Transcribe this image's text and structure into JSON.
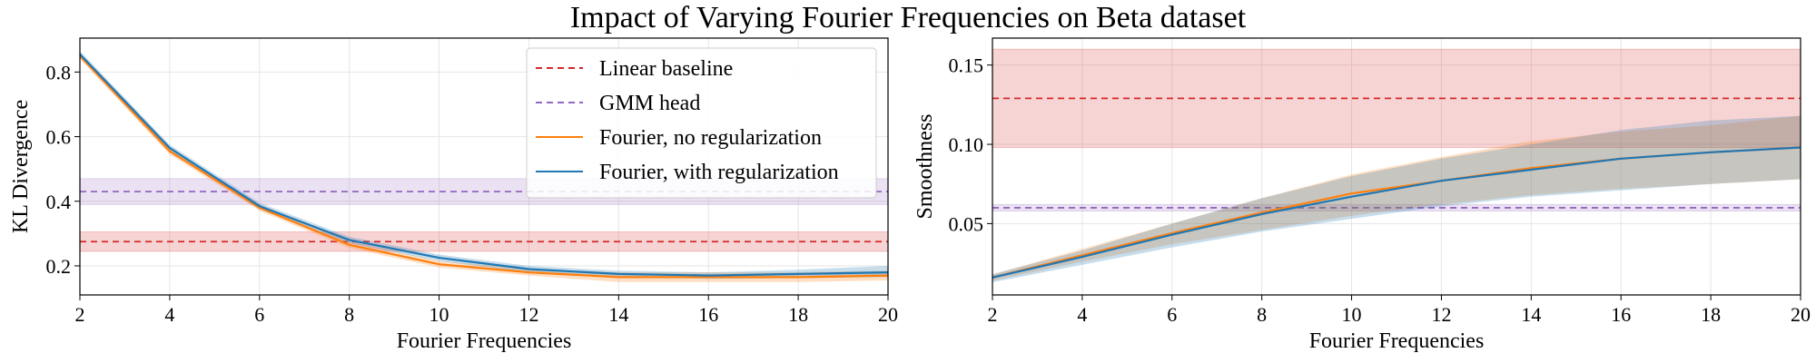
{
  "figure": {
    "suptitle": "Impact of Varying Fourier Frequencies on Beta dataset"
  },
  "colors": {
    "linear": "#d62728",
    "gmm": "#9467bd",
    "fourier_noreg": "#ff7f0e",
    "fourier_reg": "#1f77b4"
  },
  "chart_data": [
    {
      "type": "line",
      "xlabel": "Fourier Frequencies",
      "ylabel": "KL Divergence",
      "xlim": [
        2,
        20
      ],
      "ylim": [
        0.11,
        0.905
      ],
      "xticks": [
        2,
        4,
        6,
        8,
        10,
        12,
        14,
        16,
        18,
        20
      ],
      "yticks": [
        0.2,
        0.4,
        0.6,
        0.8
      ],
      "ytick_labels": [
        "0.2",
        "0.4",
        "0.6",
        "0.8"
      ],
      "grid": true,
      "legend": {
        "position": "upper-right",
        "entries": [
          "Linear baseline",
          "GMM head",
          "Fourier, no regularization",
          "Fourier, with regularization"
        ]
      },
      "baselines": [
        {
          "name": "Linear baseline",
          "value": 0.275,
          "band": [
            0.245,
            0.305
          ]
        },
        {
          "name": "GMM head",
          "value": 0.43,
          "band": [
            0.39,
            0.47
          ]
        }
      ],
      "series": [
        {
          "name": "Fourier, no regularization",
          "x": [
            2,
            4,
            6,
            8,
            10,
            12,
            14,
            16,
            18,
            20
          ],
          "values": [
            0.85,
            0.555,
            0.38,
            0.265,
            0.205,
            0.18,
            0.165,
            0.165,
            0.165,
            0.17
          ],
          "lower": [
            0.84,
            0.545,
            0.37,
            0.255,
            0.195,
            0.17,
            0.15,
            0.15,
            0.15,
            0.155
          ],
          "upper": [
            0.86,
            0.565,
            0.39,
            0.275,
            0.215,
            0.19,
            0.18,
            0.18,
            0.18,
            0.185
          ]
        },
        {
          "name": "Fourier, with regularization",
          "x": [
            2,
            4,
            6,
            8,
            10,
            12,
            14,
            16,
            18,
            20
          ],
          "values": [
            0.855,
            0.565,
            0.385,
            0.28,
            0.225,
            0.19,
            0.175,
            0.17,
            0.175,
            0.18
          ],
          "lower": [
            0.845,
            0.555,
            0.375,
            0.27,
            0.215,
            0.18,
            0.165,
            0.16,
            0.162,
            0.165
          ],
          "upper": [
            0.865,
            0.575,
            0.395,
            0.29,
            0.235,
            0.2,
            0.185,
            0.18,
            0.188,
            0.2
          ]
        }
      ]
    },
    {
      "type": "line",
      "xlabel": "Fourier Frequencies",
      "ylabel": "Smoothness",
      "xlim": [
        2,
        20
      ],
      "ylim": [
        0.005,
        0.167
      ],
      "xticks": [
        2,
        4,
        6,
        8,
        10,
        12,
        14,
        16,
        18,
        20
      ],
      "yticks": [
        0.05,
        0.1,
        0.15
      ],
      "ytick_labels": [
        "0.05",
        "0.10",
        "0.15"
      ],
      "grid": true,
      "legend": null,
      "baselines": [
        {
          "name": "Linear baseline",
          "value": 0.129,
          "band": [
            0.098,
            0.16
          ]
        },
        {
          "name": "GMM head",
          "value": 0.06,
          "band": [
            0.058,
            0.062
          ]
        }
      ],
      "series": [
        {
          "name": "Fourier, no regularization",
          "x": [
            2,
            4,
            6,
            8,
            10,
            12,
            14,
            16,
            18,
            20
          ],
          "values": [
            0.016,
            0.03,
            0.044,
            0.057,
            0.069,
            0.077,
            0.085,
            0.091,
            0.095,
            0.098
          ],
          "lower": [
            0.014,
            0.026,
            0.037,
            0.046,
            0.055,
            0.062,
            0.068,
            0.072,
            0.075,
            0.078
          ],
          "upper": [
            0.018,
            0.034,
            0.05,
            0.066,
            0.081,
            0.092,
            0.102,
            0.108,
            0.112,
            0.118
          ]
        },
        {
          "name": "Fourier, with regularization",
          "x": [
            2,
            4,
            6,
            8,
            10,
            12,
            14,
            16,
            18,
            20
          ],
          "values": [
            0.016,
            0.029,
            0.043,
            0.056,
            0.067,
            0.077,
            0.084,
            0.091,
            0.095,
            0.098
          ],
          "lower": [
            0.013,
            0.024,
            0.035,
            0.045,
            0.053,
            0.061,
            0.067,
            0.071,
            0.075,
            0.078
          ],
          "upper": [
            0.018,
            0.033,
            0.05,
            0.066,
            0.08,
            0.091,
            0.1,
            0.109,
            0.115,
            0.118
          ]
        }
      ]
    }
  ]
}
